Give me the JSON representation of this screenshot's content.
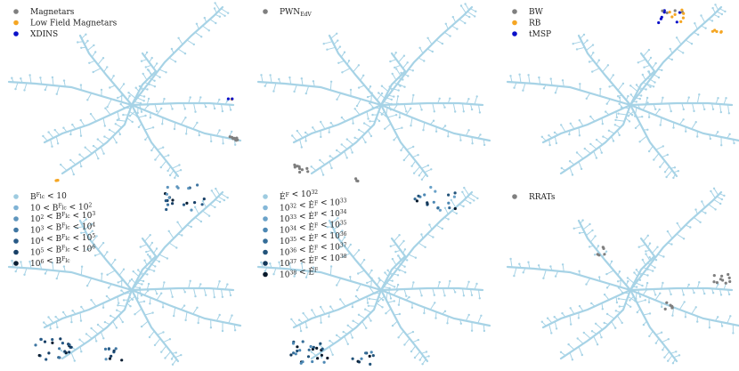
{
  "tree": {
    "branch_color": "#a7d3e6"
  },
  "panels": [
    {
      "id": "magnetars",
      "legend": [
        {
          "label": "Magnetars",
          "color": "#7f7f7f"
        },
        {
          "label": "Low Field Magnetars",
          "color": "#f5a623"
        },
        {
          "label": "XDINS",
          "color": "#0a10c9"
        }
      ]
    },
    {
      "id": "pwn",
      "legend": [
        {
          "label": "PWN",
          "sub": "EdV",
          "color": "#7f7f7f"
        }
      ]
    },
    {
      "id": "binaries",
      "legend": [
        {
          "label": "BW",
          "color": "#7f7f7f"
        },
        {
          "label": "RB",
          "color": "#f5a623"
        },
        {
          "label": "tMSP",
          "color": "#0a10c9"
        }
      ]
    },
    {
      "id": "bfield",
      "legend": [
        {
          "label": "B^F_lc < 10",
          "color": "#9ecbe0"
        },
        {
          "label": "10 < B^F_lc < 10^2",
          "color": "#7fb3d5"
        },
        {
          "label": "10^2 < B^F_lc < 10^3",
          "color": "#5e95bd"
        },
        {
          "label": "10^3 < B^F_lc < 10^4",
          "color": "#3f76a2"
        },
        {
          "label": "10^4 < B^F_lc < 10^5",
          "color": "#285a86"
        },
        {
          "label": "10^5 < B^F_lc < 10^6",
          "color": "#173f66"
        },
        {
          "label": "10^6 < B^F_lc",
          "color": "#0b1f33"
        }
      ]
    },
    {
      "id": "edot",
      "legend": [
        {
          "label": "Ė^F < 10^32",
          "color": "#9ecbe0"
        },
        {
          "label": "10^32 < Ė^F < 10^33",
          "color": "#85b8d8"
        },
        {
          "label": "10^33 < Ė^F < 10^34",
          "color": "#6aa2c9"
        },
        {
          "label": "10^34 < Ė^F < 10^35",
          "color": "#4d88b4"
        },
        {
          "label": "10^35 < Ė^F < 10^36",
          "color": "#356d98"
        },
        {
          "label": "10^36 < Ė^F < 10^37",
          "color": "#22537a"
        },
        {
          "label": "10^37 < Ė^F < 10^38",
          "color": "#13385a"
        },
        {
          "label": "10^38 < Ė^F",
          "color": "#07192b"
        }
      ]
    },
    {
      "id": "rrats",
      "legend": [
        {
          "label": "RRATs",
          "color": "#7f7f7f"
        }
      ]
    }
  ]
}
